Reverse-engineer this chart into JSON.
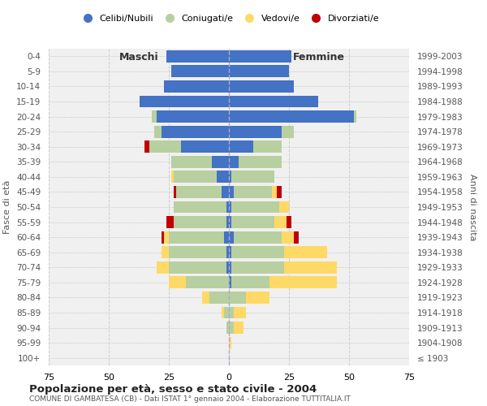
{
  "age_groups": [
    "100+",
    "95-99",
    "90-94",
    "85-89",
    "80-84",
    "75-79",
    "70-74",
    "65-69",
    "60-64",
    "55-59",
    "50-54",
    "45-49",
    "40-44",
    "35-39",
    "30-34",
    "25-29",
    "20-24",
    "15-19",
    "10-14",
    "5-9",
    "0-4"
  ],
  "birth_years": [
    "≤ 1903",
    "1904-1908",
    "1909-1913",
    "1914-1918",
    "1919-1923",
    "1924-1928",
    "1929-1933",
    "1934-1938",
    "1939-1943",
    "1944-1948",
    "1949-1953",
    "1954-1958",
    "1959-1963",
    "1964-1968",
    "1969-1973",
    "1974-1978",
    "1979-1983",
    "1984-1988",
    "1989-1993",
    "1994-1998",
    "1999-2003"
  ],
  "maschi": {
    "celibi": [
      0,
      0,
      0,
      0,
      0,
      0,
      1,
      1,
      2,
      1,
      1,
      3,
      5,
      7,
      20,
      28,
      30,
      37,
      27,
      24,
      26
    ],
    "coniugati": [
      0,
      0,
      1,
      2,
      8,
      18,
      24,
      24,
      23,
      22,
      22,
      19,
      18,
      17,
      13,
      3,
      2,
      0,
      0,
      0,
      0
    ],
    "vedovi": [
      0,
      0,
      0,
      1,
      3,
      7,
      5,
      3,
      2,
      0,
      0,
      0,
      1,
      0,
      0,
      0,
      0,
      0,
      0,
      0,
      0
    ],
    "divorziati": [
      0,
      0,
      0,
      0,
      0,
      0,
      0,
      0,
      1,
      3,
      0,
      1,
      0,
      0,
      2,
      0,
      0,
      0,
      0,
      0,
      0
    ]
  },
  "femmine": {
    "nubili": [
      0,
      0,
      0,
      0,
      0,
      1,
      1,
      1,
      2,
      1,
      1,
      2,
      1,
      4,
      10,
      22,
      52,
      37,
      27,
      25,
      26
    ],
    "coniugate": [
      0,
      0,
      2,
      2,
      7,
      16,
      22,
      22,
      20,
      18,
      20,
      16,
      18,
      18,
      12,
      5,
      1,
      0,
      0,
      0,
      0
    ],
    "vedove": [
      0,
      1,
      4,
      5,
      10,
      28,
      22,
      18,
      5,
      5,
      4,
      2,
      0,
      0,
      0,
      0,
      0,
      0,
      0,
      0,
      0
    ],
    "divorziate": [
      0,
      0,
      0,
      0,
      0,
      0,
      0,
      0,
      2,
      2,
      0,
      2,
      0,
      0,
      0,
      0,
      0,
      0,
      0,
      0,
      0
    ]
  },
  "colors": {
    "celibi": "#4472c4",
    "coniugati": "#b8cfa0",
    "vedovi": "#ffd966",
    "divorziati": "#c00000"
  },
  "xlim": 75,
  "title": "Popolazione per età, sesso e stato civile - 2004",
  "subtitle": "COMUNE DI GAMBATESA (CB) - Dati ISTAT 1° gennaio 2004 - Elaborazione TUTTITALIA.IT",
  "ylabel_left": "Fasce di età",
  "ylabel_right": "Anni di nascita",
  "xlabel_left": "Maschi",
  "xlabel_right": "Femmine",
  "legend_labels": [
    "Celibi/Nubili",
    "Coniugati/e",
    "Vedovi/e",
    "Divorziati/e"
  ],
  "background_color": "#ffffff",
  "bar_height": 0.8
}
